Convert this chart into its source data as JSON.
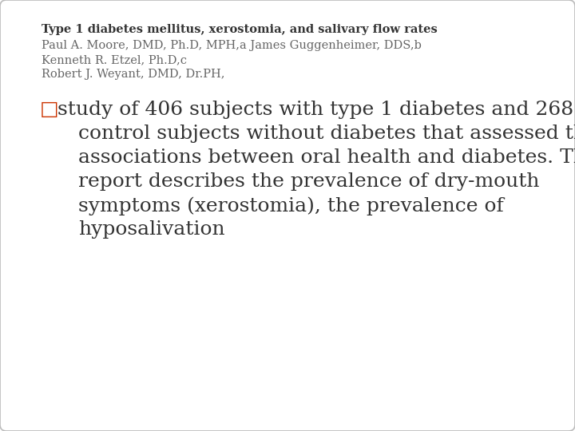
{
  "title_line": "Type 1 diabetes mellitus, xerostomia, and salivary flow rates",
  "author_lines": [
    "Paul A. Moore, DMD, Ph.D, MPH,a James Guggenheimer, DDS,b",
    "Kenneth R. Etzel, Ph.D,c",
    "Robert J. Weyant, DMD, Dr.PH,"
  ],
  "bullet_char": "□",
  "body_lines": [
    "study of 406 subjects with type 1 diabetes and 268",
    "control subjects without diabetes that assessed the",
    "associations between oral health and diabetes. This",
    "report describes the prevalence of dry-mouth",
    "symptoms (xerostomia), the prevalence of",
    "hyposalivation"
  ],
  "title_fontsize": 10.5,
  "author_fontsize": 10.5,
  "body_fontsize": 18,
  "bullet_fontsize": 18,
  "title_color": "#333333",
  "author_color": "#666666",
  "body_color": "#333333",
  "bullet_color": "#cc3300",
  "background_color": "#ffffff",
  "box_edge_color": "#bbbbbb"
}
